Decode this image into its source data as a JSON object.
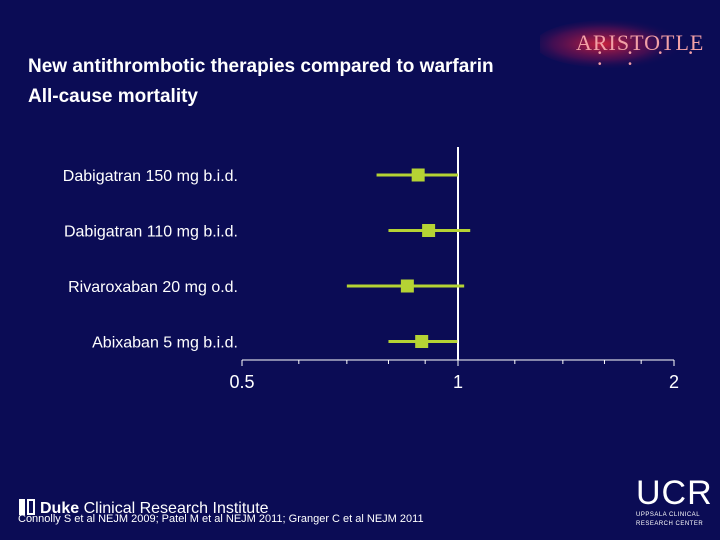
{
  "header": {
    "title_line1": "New antithrombotic therapies compared to warfarin",
    "title_line2": "All-cause mortality",
    "logo_text": "ARISTOTLE",
    "logo_dots": "• • • • • •"
  },
  "footer": {
    "institute_bold": "Duke",
    "institute_rest": "Clinical Research Institute",
    "citation": "Connolly S et al NEJM 2009; Patel M et al NEJM 2011; Granger C et al NEJM 2011",
    "ucr_big": "UCR",
    "ucr_line1": "UPPSALA CLINICAL",
    "ucr_line2": "RESEARCH CENTER"
  },
  "colors": {
    "background": "#0b0c55",
    "marker": "#b5d334",
    "axis": "#ffffff"
  },
  "chart_data": {
    "type": "forest",
    "title": "",
    "xscale": "log",
    "xlim": [
      0.5,
      2
    ],
    "xticks": [
      0.5,
      1,
      2
    ],
    "xtick_labels": [
      "0.5",
      "1",
      "2"
    ],
    "reference_line": 1,
    "rows": [
      {
        "label": "Dabigatran 150 mg b.i.d.",
        "estimate": 0.88,
        "lower": 0.77,
        "upper": 1.0
      },
      {
        "label": "Dabigatran 110 mg b.i.d.",
        "estimate": 0.91,
        "lower": 0.8,
        "upper": 1.04
      },
      {
        "label": "Rivaroxaban 20 mg o.d.",
        "estimate": 0.85,
        "lower": 0.7,
        "upper": 1.02
      },
      {
        "label": "Abixaban  5 mg b.i.d.",
        "estimate": 0.89,
        "lower": 0.8,
        "upper": 0.998
      }
    ]
  }
}
